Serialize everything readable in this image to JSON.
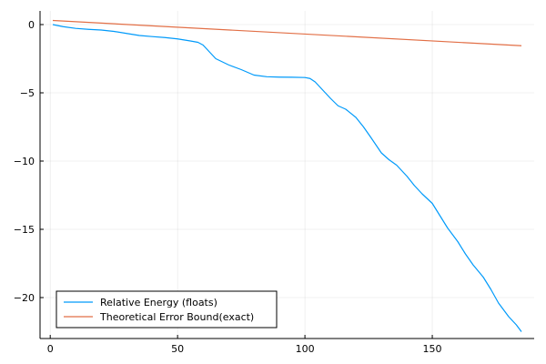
{
  "chart_data": {
    "type": "line",
    "title": "",
    "xlabel": "",
    "ylabel": "",
    "xlim": [
      -4,
      190
    ],
    "ylim": [
      -23,
      1
    ],
    "grid": true,
    "legend_position": "bottom-left",
    "x_ticks": [
      0,
      50,
      100,
      150
    ],
    "y_ticks": [
      0,
      -5,
      -10,
      -15,
      -20
    ],
    "x_tick_labels": [
      "0",
      "50",
      "100",
      "150"
    ],
    "y_tick_labels": [
      "0",
      "−5",
      "−10",
      "−15",
      "−20"
    ],
    "series": [
      {
        "name": "Relative Energy (floats)",
        "color": "#009AFA",
        "x": [
          1,
          5,
          10,
          15,
          20,
          25,
          30,
          35,
          40,
          45,
          50,
          55,
          58,
          60,
          62,
          65,
          70,
          75,
          80,
          85,
          90,
          95,
          100,
          102,
          104,
          107,
          110,
          113,
          116,
          120,
          123,
          126,
          130,
          133,
          136,
          140,
          143,
          146,
          150,
          153,
          156,
          160,
          163,
          166,
          170,
          173,
          176,
          180,
          183,
          185
        ],
        "y": [
          0,
          -0.15,
          -0.28,
          -0.35,
          -0.4,
          -0.5,
          -0.65,
          -0.8,
          -0.88,
          -0.95,
          -1.05,
          -1.2,
          -1.3,
          -1.5,
          -1.9,
          -2.5,
          -2.95,
          -3.3,
          -3.7,
          -3.82,
          -3.85,
          -3.86,
          -3.88,
          -3.95,
          -4.2,
          -4.8,
          -5.4,
          -5.95,
          -6.2,
          -6.8,
          -7.5,
          -8.3,
          -9.4,
          -9.9,
          -10.3,
          -11.1,
          -11.8,
          -12.4,
          -13.1,
          -14.0,
          -14.9,
          -15.9,
          -16.8,
          -17.6,
          -18.5,
          -19.4,
          -20.4,
          -21.4,
          -22.0,
          -22.5
        ]
      },
      {
        "name": "Theoretical Error Bound(exact)",
        "color": "#E26F46",
        "x": [
          1,
          185
        ],
        "y": [
          0.3,
          -1.55
        ]
      }
    ]
  }
}
